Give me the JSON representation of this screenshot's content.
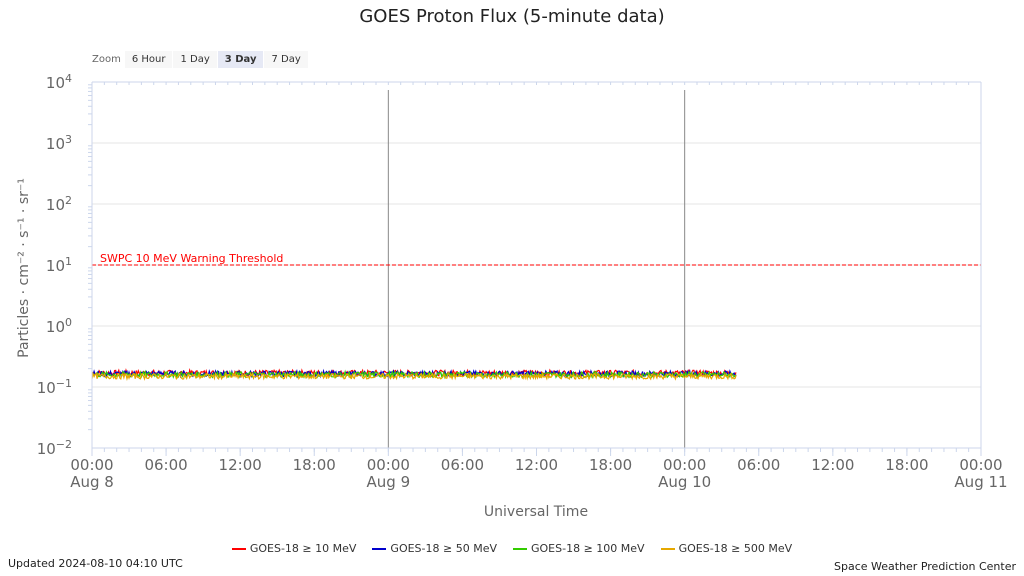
{
  "chart_data": {
    "type": "line",
    "title": "GOES Proton Flux (5-minute data)",
    "ylabel": "Particles · cm⁻² · s⁻¹ · sr⁻¹",
    "xlabel": "Universal Time",
    "yscale": "log",
    "ylim": [
      0.01,
      10000
    ],
    "y_ticks": [
      {
        "exp": "4",
        "value": 10000
      },
      {
        "exp": "3",
        "value": 1000
      },
      {
        "exp": "2",
        "value": 100
      },
      {
        "exp": "1",
        "value": 10
      },
      {
        "exp": "0",
        "value": 1
      },
      {
        "exp": "−1",
        "value": 0.1
      },
      {
        "exp": "−2",
        "value": 0.01
      }
    ],
    "xlim": [
      "2024-08-08 00:00",
      "2024-08-11 00:00"
    ],
    "x_ticks": [
      {
        "time": "00:00",
        "date": "Aug 8"
      },
      {
        "time": "06:00",
        "date": ""
      },
      {
        "time": "12:00",
        "date": ""
      },
      {
        "time": "18:00",
        "date": ""
      },
      {
        "time": "00:00",
        "date": "Aug 9"
      },
      {
        "time": "06:00",
        "date": ""
      },
      {
        "time": "12:00",
        "date": ""
      },
      {
        "time": "18:00",
        "date": ""
      },
      {
        "time": "00:00",
        "date": "Aug 10"
      },
      {
        "time": "06:00",
        "date": ""
      },
      {
        "time": "12:00",
        "date": ""
      },
      {
        "time": "18:00",
        "date": ""
      },
      {
        "time": "00:00",
        "date": "Aug 11"
      }
    ],
    "day_boundaries": [
      "Aug 9 00:00",
      "Aug 10 00:00"
    ],
    "threshold": {
      "label": "SWPC 10 MeV Warning Threshold",
      "value": 10,
      "color": "#ff0000"
    },
    "data_end": "2024-08-10 04:10",
    "series": [
      {
        "name": "GOES-18 ≥ 10 MeV",
        "color": "#ff0000",
        "approx_value": 0.17
      },
      {
        "name": "GOES-18 ≥ 50 MeV",
        "color": "#0000cc",
        "approx_value": 0.165
      },
      {
        "name": "GOES-18 ≥ 100 MeV",
        "color": "#33cc00",
        "approx_value": 0.16
      },
      {
        "name": "GOES-18 ≥ 500 MeV",
        "color": "#e6a800",
        "approx_value": 0.15
      }
    ],
    "grid": true,
    "legend": "bottom"
  },
  "zoom": {
    "label": "Zoom",
    "buttons": [
      "6 Hour",
      "1 Day",
      "3 Day",
      "7 Day"
    ],
    "active": "3 Day"
  },
  "footer": {
    "updated": "Updated 2024-08-10 04:10 UTC",
    "credit": "Space Weather Prediction Center"
  }
}
